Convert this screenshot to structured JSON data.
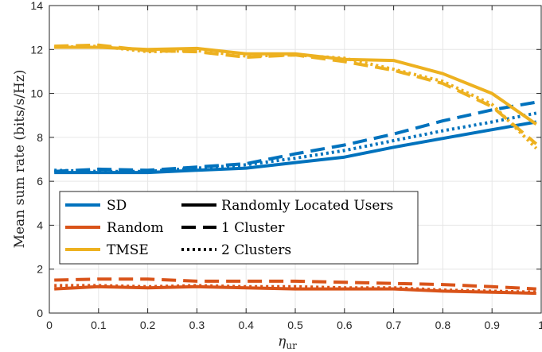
{
  "chart_data": {
    "type": "line",
    "title": "",
    "xlabel": "η",
    "xlabel_sub": "ur",
    "ylabel": "Mean sum rate (bits/s/Hz)",
    "xlim": [
      0,
      1
    ],
    "ylim": [
      0,
      14
    ],
    "xticks": [
      0,
      0.1,
      0.2,
      0.3,
      0.4,
      0.5,
      0.6,
      0.7,
      0.8,
      0.9,
      1
    ],
    "xtick_labels": [
      "0",
      "0.1",
      "0.2",
      "0.3",
      "0.4",
      "0.5",
      "0.6",
      "0.7",
      "0.8",
      "0.9",
      "1"
    ],
    "yticks": [
      0,
      2,
      4,
      6,
      8,
      10,
      12,
      14
    ],
    "ytick_labels": [
      "0",
      "2",
      "4",
      "6",
      "8",
      "10",
      "12",
      "14"
    ],
    "grid": true,
    "legend_methods": [
      {
        "label": "SD",
        "color": "#0072BD"
      },
      {
        "label": "Random",
        "color": "#D95319"
      },
      {
        "label": "TMSE",
        "color": "#EDB120"
      }
    ],
    "legend_scenarios": [
      {
        "label": "Randomly Located Users",
        "style": "solid"
      },
      {
        "label": "1 Cluster",
        "style": "dashed"
      },
      {
        "label": "2 Clusters",
        "style": "dotted"
      }
    ],
    "legend_position": "lower-left",
    "series": [
      {
        "name": "SD - Randomly Located Users",
        "color": "#0072BD",
        "style": "solid",
        "x": [
          0.01,
          0.1,
          0.2,
          0.3,
          0.4,
          0.5,
          0.6,
          0.7,
          0.8,
          0.9,
          0.99
        ],
        "y": [
          6.4,
          6.4,
          6.4,
          6.5,
          6.6,
          6.85,
          7.1,
          7.55,
          7.95,
          8.35,
          8.7
        ]
      },
      {
        "name": "SD - 1 Cluster",
        "color": "#0072BD",
        "style": "dashed",
        "x": [
          0.01,
          0.1,
          0.2,
          0.3,
          0.4,
          0.5,
          0.6,
          0.7,
          0.8,
          0.9,
          0.99
        ],
        "y": [
          6.45,
          6.55,
          6.5,
          6.65,
          6.8,
          7.25,
          7.65,
          8.15,
          8.75,
          9.25,
          9.6
        ]
      },
      {
        "name": "SD - 2 Clusters",
        "color": "#0072BD",
        "style": "dotted",
        "x": [
          0.01,
          0.1,
          0.2,
          0.3,
          0.4,
          0.5,
          0.6,
          0.7,
          0.8,
          0.9,
          0.99
        ],
        "y": [
          6.5,
          6.45,
          6.45,
          6.6,
          6.75,
          7.05,
          7.4,
          7.85,
          8.3,
          8.7,
          9.1
        ]
      },
      {
        "name": "Random - Randomly Located Users",
        "color": "#D95319",
        "style": "solid",
        "x": [
          0.01,
          0.1,
          0.2,
          0.3,
          0.4,
          0.5,
          0.6,
          0.7,
          0.8,
          0.9,
          0.99
        ],
        "y": [
          1.1,
          1.2,
          1.15,
          1.2,
          1.15,
          1.1,
          1.1,
          1.1,
          1.0,
          0.95,
          0.9
        ]
      },
      {
        "name": "Random - 1 Cluster",
        "color": "#D95319",
        "style": "dashed",
        "x": [
          0.01,
          0.1,
          0.2,
          0.3,
          0.4,
          0.5,
          0.6,
          0.7,
          0.8,
          0.9,
          0.99
        ],
        "y": [
          1.5,
          1.55,
          1.55,
          1.45,
          1.45,
          1.45,
          1.4,
          1.35,
          1.3,
          1.2,
          1.1
        ]
      },
      {
        "name": "Random - 2 Clusters",
        "color": "#D95319",
        "style": "dotted",
        "x": [
          0.01,
          0.1,
          0.2,
          0.3,
          0.4,
          0.5,
          0.6,
          0.7,
          0.8,
          0.9,
          0.99
        ],
        "y": [
          1.25,
          1.25,
          1.2,
          1.25,
          1.2,
          1.2,
          1.15,
          1.15,
          1.05,
          1.0,
          0.95
        ]
      },
      {
        "name": "TMSE - Randomly Located Users",
        "color": "#EDB120",
        "style": "solid",
        "x": [
          0.01,
          0.1,
          0.2,
          0.3,
          0.4,
          0.5,
          0.6,
          0.7,
          0.8,
          0.9,
          0.99
        ],
        "y": [
          12.1,
          12.1,
          12.0,
          12.05,
          11.8,
          11.8,
          11.55,
          11.5,
          10.9,
          10.0,
          8.6
        ]
      },
      {
        "name": "TMSE - 1 Cluster",
        "color": "#EDB120",
        "style": "dashed",
        "x": [
          0.01,
          0.1,
          0.2,
          0.3,
          0.4,
          0.5,
          0.6,
          0.7,
          0.8,
          0.9,
          0.99
        ],
        "y": [
          12.15,
          12.2,
          11.95,
          11.9,
          11.65,
          11.75,
          11.45,
          11.05,
          10.45,
          9.4,
          7.7
        ]
      },
      {
        "name": "TMSE - 2 Clusters",
        "color": "#EDB120",
        "style": "dotted",
        "x": [
          0.01,
          0.1,
          0.2,
          0.3,
          0.4,
          0.5,
          0.6,
          0.7,
          0.8,
          0.9,
          0.99
        ],
        "y": [
          12.1,
          12.15,
          11.9,
          11.95,
          11.7,
          11.75,
          11.6,
          11.1,
          10.55,
          9.5,
          7.5
        ]
      }
    ]
  }
}
